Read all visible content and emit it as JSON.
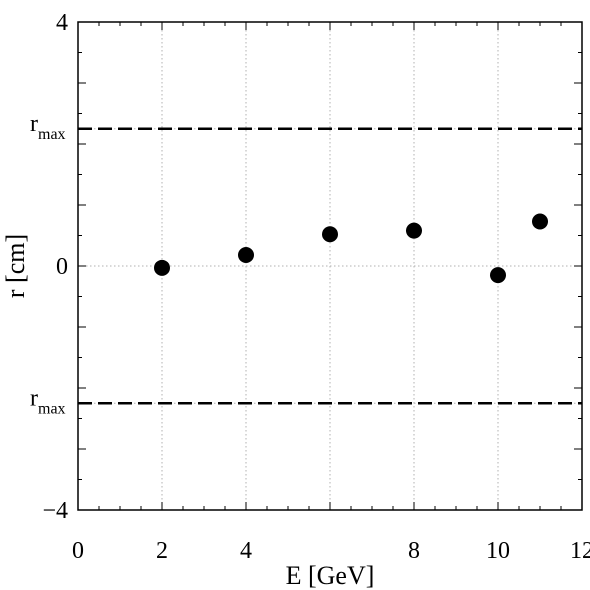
{
  "chart_data": {
    "type": "scatter",
    "title": "",
    "xlabel": "E [GeV]",
    "ylabel": "r [cm]",
    "xlim": [
      0,
      12
    ],
    "ylim": [
      -4,
      4
    ],
    "x_ticks": [
      0,
      2,
      4,
      8,
      10,
      12
    ],
    "y_ticks": [
      -4,
      0,
      4
    ],
    "x_ticks_unlabeled": [
      6
    ],
    "y_ticks_unlabeled": [
      2.25,
      -2.25
    ],
    "x_tick_labels": [
      "0",
      "2",
      "4",
      "8",
      "10",
      "12"
    ],
    "y_tick_labels": [
      "−4",
      "0",
      "4"
    ],
    "grid": true,
    "grid_style": "dotted",
    "legend": "none",
    "reference_lines": [
      {
        "y": 2.25,
        "label": "r",
        "subscript": "max",
        "style": "dashed"
      },
      {
        "y": -2.25,
        "label": "r",
        "subscript": "max",
        "style": "dashed"
      }
    ],
    "series": [
      {
        "x": [
          2,
          4,
          6,
          8,
          10,
          11
        ],
        "y": [
          -0.03,
          0.18,
          0.52,
          0.58,
          -0.15,
          0.73
        ],
        "color": "#000000",
        "marker": "filled-circle"
      }
    ]
  }
}
